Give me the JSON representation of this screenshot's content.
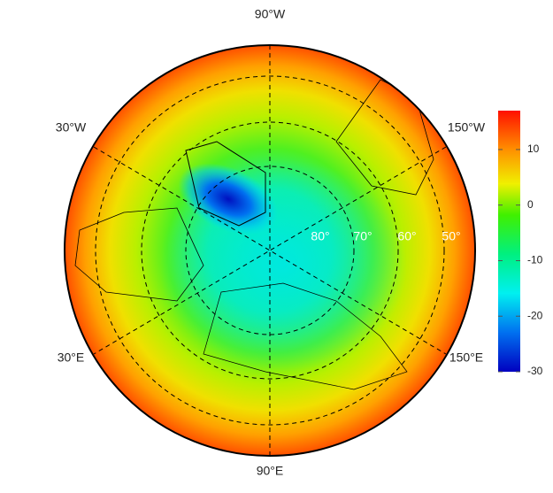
{
  "meridian_labels": [
    "90°W",
    "30°W",
    "150°W",
    "30°E",
    "150°E",
    "90°E"
  ],
  "parallel_labels": [
    "80°",
    "70°",
    "60°",
    "50°"
  ],
  "colorbar": {
    "lim": [
      -30,
      17
    ],
    "ticks": [
      10,
      0,
      -10,
      -20,
      -30
    ]
  }
}
